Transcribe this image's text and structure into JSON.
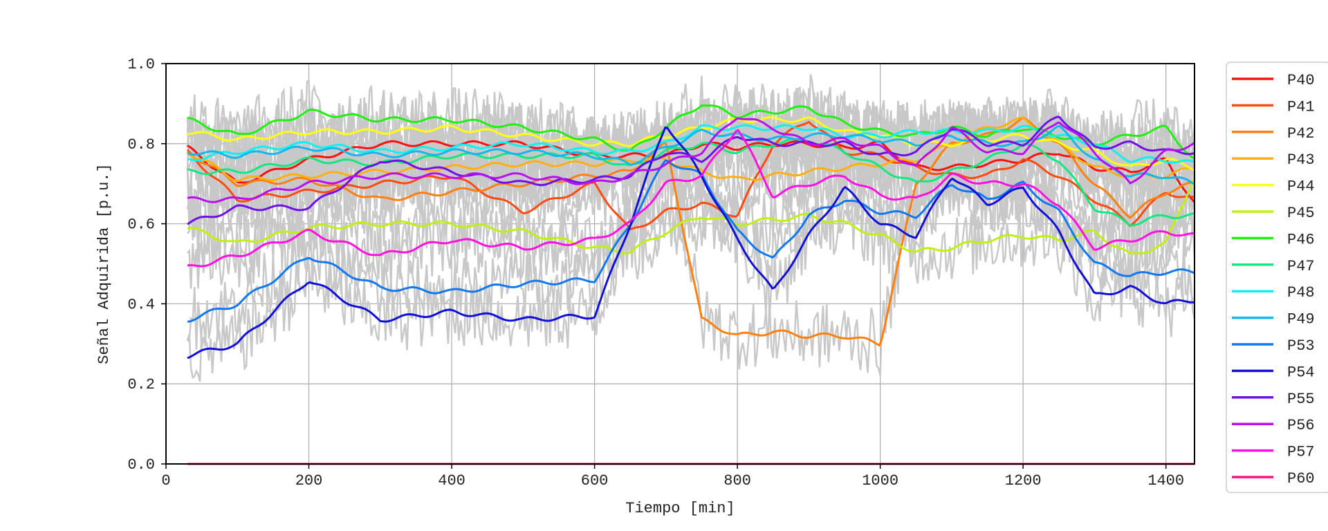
{
  "chart_data": {
    "type": "line",
    "title": "",
    "xlabel": "Tiempo [min]",
    "ylabel": "Señal Adquirida [p.u.]",
    "xlim": [
      0,
      1440
    ],
    "ylim": [
      0.0,
      1.0
    ],
    "xticks": [
      0,
      200,
      400,
      600,
      800,
      1000,
      1200,
      1400
    ],
    "yticks": [
      0.0,
      0.2,
      0.4,
      0.6,
      0.8,
      1.0
    ],
    "xtick_labels": [
      "0",
      "200",
      "400",
      "600",
      "800",
      "1000",
      "1200",
      "1400"
    ],
    "ytick_labels": [
      "0.0",
      "0.2",
      "0.4",
      "0.6",
      "0.8",
      "1.0"
    ],
    "grid": true,
    "legend_position": "right",
    "background_raw_color": "#c8c8c8",
    "x": [
      30,
      100,
      200,
      300,
      400,
      500,
      600,
      650,
      700,
      750,
      800,
      850,
      900,
      950,
      1000,
      1050,
      1100,
      1150,
      1200,
      1250,
      1300,
      1350,
      1400,
      1440
    ],
    "series": [
      {
        "name": "P40",
        "color": "#ff1010",
        "values": [
          0.79,
          0.7,
          0.76,
          0.8,
          0.8,
          0.8,
          0.77,
          0.77,
          0.77,
          0.8,
          0.79,
          0.8,
          0.8,
          0.79,
          0.8,
          0.74,
          0.74,
          0.75,
          0.76,
          0.78,
          0.74,
          0.73,
          0.76,
          0.65
        ]
      },
      {
        "name": "P41",
        "color": "#ff4a10",
        "values": [
          0.78,
          0.66,
          0.68,
          0.7,
          0.72,
          0.63,
          0.7,
          0.58,
          0.63,
          0.65,
          0.62,
          0.8,
          0.86,
          0.78,
          0.77,
          0.74,
          0.72,
          0.72,
          0.76,
          0.72,
          0.66,
          0.6,
          0.68,
          0.66
        ]
      },
      {
        "name": "P42",
        "color": "#ff8010",
        "values": [
          0.78,
          0.7,
          0.71,
          0.66,
          0.68,
          0.7,
          0.72,
          0.73,
          0.8,
          0.36,
          0.32,
          0.33,
          0.32,
          0.32,
          0.3,
          0.7,
          0.8,
          0.82,
          0.86,
          0.8,
          0.7,
          0.62,
          0.68,
          0.7
        ]
      },
      {
        "name": "P43",
        "color": "#ffb010",
        "values": [
          0.78,
          0.71,
          0.72,
          0.73,
          0.74,
          0.75,
          0.75,
          0.76,
          0.76,
          0.73,
          0.71,
          0.72,
          0.73,
          0.74,
          0.75,
          0.76,
          0.8,
          0.84,
          0.86,
          0.8,
          0.74,
          0.72,
          0.72,
          0.74
        ]
      },
      {
        "name": "P44",
        "color": "#ffff10",
        "values": [
          0.83,
          0.81,
          0.83,
          0.83,
          0.84,
          0.82,
          0.8,
          0.8,
          0.82,
          0.84,
          0.86,
          0.86,
          0.86,
          0.83,
          0.82,
          0.8,
          0.8,
          0.81,
          0.82,
          0.8,
          0.78,
          0.74,
          0.76,
          0.74
        ]
      },
      {
        "name": "P45",
        "color": "#c0f010",
        "values": [
          0.59,
          0.55,
          0.59,
          0.6,
          0.6,
          0.58,
          0.54,
          0.53,
          0.58,
          0.62,
          0.6,
          0.61,
          0.62,
          0.6,
          0.57,
          0.53,
          0.54,
          0.56,
          0.57,
          0.56,
          0.58,
          0.52,
          0.55,
          0.72
        ]
      },
      {
        "name": "P46",
        "color": "#20f010",
        "values": [
          0.86,
          0.82,
          0.88,
          0.86,
          0.86,
          0.84,
          0.81,
          0.78,
          0.84,
          0.9,
          0.87,
          0.88,
          0.89,
          0.85,
          0.83,
          0.82,
          0.84,
          0.82,
          0.84,
          0.82,
          0.8,
          0.82,
          0.84,
          0.76
        ]
      },
      {
        "name": "P47",
        "color": "#10e880",
        "values": [
          0.73,
          0.73,
          0.76,
          0.75,
          0.77,
          0.77,
          0.77,
          0.74,
          0.78,
          0.8,
          0.78,
          0.8,
          0.81,
          0.78,
          0.74,
          0.7,
          0.73,
          0.76,
          0.8,
          0.76,
          0.64,
          0.6,
          0.62,
          0.62
        ]
      },
      {
        "name": "P48",
        "color": "#10f0f0",
        "values": [
          0.76,
          0.78,
          0.8,
          0.78,
          0.79,
          0.8,
          0.78,
          0.78,
          0.8,
          0.84,
          0.84,
          0.84,
          0.84,
          0.82,
          0.82,
          0.83,
          0.83,
          0.83,
          0.84,
          0.82,
          0.8,
          0.76,
          0.76,
          0.75
        ]
      },
      {
        "name": "P49",
        "color": "#10b8f0",
        "values": [
          0.78,
          0.77,
          0.79,
          0.77,
          0.78,
          0.78,
          0.77,
          0.75,
          0.79,
          0.83,
          0.82,
          0.81,
          0.82,
          0.82,
          0.81,
          0.8,
          0.82,
          0.8,
          0.8,
          0.84,
          0.76,
          0.72,
          0.72,
          0.7
        ]
      },
      {
        "name": "P53",
        "color": "#1078f0",
        "values": [
          0.36,
          0.4,
          0.52,
          0.44,
          0.43,
          0.45,
          0.46,
          0.6,
          0.76,
          0.72,
          0.58,
          0.51,
          0.62,
          0.66,
          0.63,
          0.62,
          0.7,
          0.66,
          0.7,
          0.63,
          0.5,
          0.47,
          0.48,
          0.48
        ]
      },
      {
        "name": "P54",
        "color": "#1010d8",
        "values": [
          0.27,
          0.3,
          0.46,
          0.36,
          0.38,
          0.36,
          0.37,
          0.6,
          0.85,
          0.72,
          0.56,
          0.43,
          0.57,
          0.69,
          0.6,
          0.57,
          0.72,
          0.65,
          0.69,
          0.58,
          0.42,
          0.44,
          0.4,
          0.41
        ]
      },
      {
        "name": "P55",
        "color": "#7010e8",
        "values": [
          0.6,
          0.64,
          0.64,
          0.76,
          0.73,
          0.7,
          0.71,
          0.72,
          0.78,
          0.76,
          0.82,
          0.8,
          0.8,
          0.8,
          0.77,
          0.78,
          0.84,
          0.8,
          0.8,
          0.87,
          0.79,
          0.8,
          0.78,
          0.78
        ]
      },
      {
        "name": "P56",
        "color": "#b810f0",
        "values": [
          0.66,
          0.66,
          0.7,
          0.72,
          0.72,
          0.72,
          0.7,
          0.72,
          0.75,
          0.78,
          0.87,
          0.84,
          0.8,
          0.81,
          0.79,
          0.74,
          0.84,
          0.78,
          0.78,
          0.86,
          0.78,
          0.7,
          0.78,
          0.8
        ]
      },
      {
        "name": "P57",
        "color": "#ff10e0",
        "values": [
          0.49,
          0.52,
          0.58,
          0.52,
          0.56,
          0.54,
          0.56,
          0.6,
          0.7,
          0.72,
          0.84,
          0.67,
          0.7,
          0.72,
          0.67,
          0.66,
          0.72,
          0.7,
          0.7,
          0.65,
          0.54,
          0.56,
          0.58,
          0.57
        ]
      },
      {
        "name": "P60",
        "color": "#ff1080",
        "values": [
          0.0,
          0.0,
          0.0,
          0.0,
          0.0,
          0.0,
          0.0,
          0.0,
          0.0,
          0.0,
          0.0,
          0.0,
          0.0,
          0.0,
          0.0,
          0.0,
          0.0,
          0.0,
          0.0,
          0.0,
          0.0,
          0.0,
          0.0,
          0.0
        ]
      }
    ]
  }
}
